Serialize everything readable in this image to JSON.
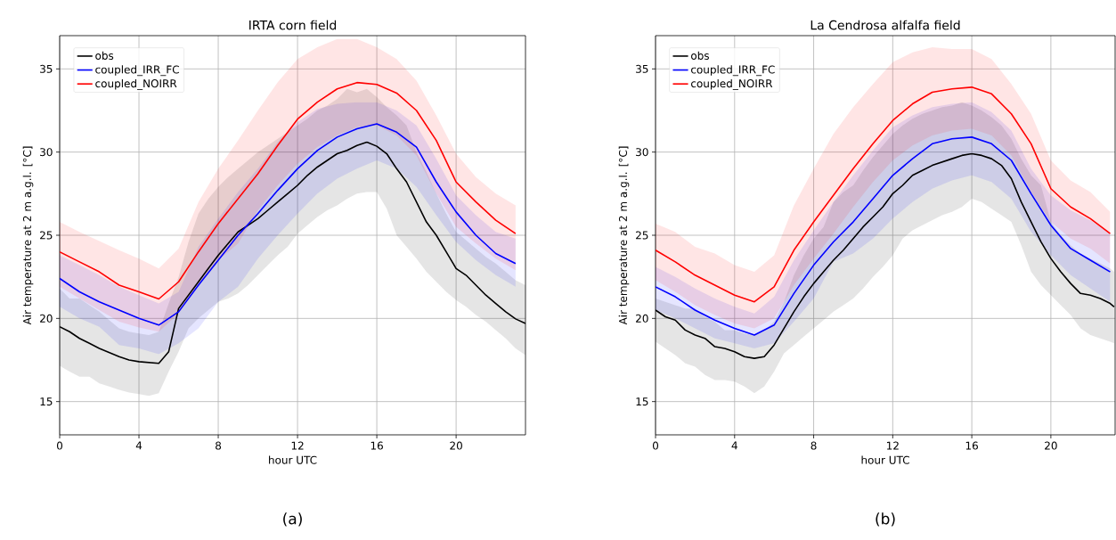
{
  "chart_data": [
    {
      "type": "line",
      "title": "IRTA corn field",
      "xlabel": "hour UTC",
      "ylabel": "Air temperature at 2 m a.g.l. [°C]",
      "annotations": [
        "(a)"
      ],
      "xlim": [
        0,
        23.5
      ],
      "ylim": [
        13,
        37
      ],
      "xticks": [
        0,
        4,
        8,
        12,
        16,
        20
      ],
      "yticks": [
        15,
        20,
        25,
        30,
        35
      ],
      "grid": true,
      "legend": "top left",
      "x": [
        0,
        1,
        2,
        3,
        4,
        5,
        6,
        7,
        8,
        9,
        10,
        11,
        12,
        13,
        14,
        15,
        16,
        17,
        18,
        19,
        20,
        21,
        22,
        23
      ],
      "series": [
        {
          "name": "obs",
          "color": "#000000",
          "x": [
            0,
            0.5,
            1,
            1.5,
            2,
            2.5,
            3,
            3.5,
            4,
            4.5,
            5,
            5.5,
            6,
            6.5,
            7,
            7.5,
            8,
            8.5,
            9,
            9.5,
            10,
            10.5,
            11,
            11.5,
            12,
            12.5,
            13,
            13.5,
            14,
            14.5,
            15,
            15.5,
            16,
            16.5,
            17,
            17.5,
            18,
            18.5,
            19,
            19.5,
            20,
            20.5,
            21,
            21.5,
            22,
            22.5,
            23,
            23.5
          ],
          "values": [
            19.5,
            19.2,
            18.8,
            18.5,
            18.2,
            17.95,
            17.7,
            17.5,
            17.4,
            17.35,
            17.3,
            18.0,
            20.6,
            21.4,
            22.2,
            23.0,
            23.8,
            24.5,
            25.2,
            25.6,
            26.0,
            26.5,
            27.0,
            27.5,
            28.0,
            28.6,
            29.1,
            29.5,
            29.9,
            30.1,
            30.4,
            30.6,
            30.35,
            29.9,
            29.0,
            28.2,
            27.0,
            25.8,
            25.0,
            24.0,
            23.0,
            22.6,
            22.0,
            21.4,
            20.9,
            20.4,
            19.97,
            19.7
          ],
          "lower": [
            17.15,
            16.8,
            16.5,
            16.5,
            16.1,
            15.9,
            15.7,
            15.55,
            15.45,
            15.35,
            15.5,
            16.8,
            18.0,
            19.4,
            20.0,
            20.5,
            21.0,
            21.2,
            21.5,
            22.0,
            22.6,
            23.2,
            23.8,
            24.3,
            25.1,
            25.6,
            26.1,
            26.5,
            26.8,
            27.2,
            27.5,
            27.6,
            27.6,
            26.6,
            25.0,
            24.3,
            23.6,
            22.8,
            22.2,
            21.6,
            21.1,
            20.7,
            20.2,
            19.8,
            19.3,
            18.8,
            18.2,
            17.8
          ],
          "upper": [
            21.8,
            21.2,
            21.2,
            20.8,
            20.4,
            19.9,
            19.4,
            19.2,
            19.1,
            19.0,
            19.2,
            20.9,
            22.5,
            24.6,
            26.3,
            27.2,
            27.9,
            28.5,
            29.0,
            29.5,
            30.0,
            30.4,
            30.8,
            31.2,
            31.6,
            32.0,
            32.5,
            32.8,
            33.2,
            33.8,
            33.6,
            33.8,
            33.3,
            32.7,
            32.2,
            31.6,
            30.0,
            28.8,
            27.5,
            26.3,
            25.2,
            24.7,
            24.2,
            23.7,
            23.3,
            22.8,
            22.3,
            22.0
          ]
        },
        {
          "name": "coupled_IRR_FC",
          "color": "#0000ff",
          "values": [
            22.4,
            21.6,
            21.0,
            20.5,
            20.0,
            19.6,
            20.4,
            22.0,
            23.5,
            25.0,
            26.3,
            27.7,
            29.0,
            30.1,
            30.9,
            31.4,
            31.7,
            31.2,
            30.3,
            28.2,
            26.4,
            25.0,
            23.9,
            23.3
          ],
          "lower": [
            20.7,
            20.0,
            19.5,
            18.4,
            18.2,
            17.85,
            18.5,
            19.4,
            21.0,
            21.9,
            23.6,
            25.0,
            26.3,
            27.5,
            28.4,
            29.0,
            29.5,
            29.0,
            27.9,
            26.2,
            24.6,
            23.5,
            22.6,
            21.9
          ],
          "upper": [
            23.8,
            23.2,
            22.6,
            21.9,
            21.4,
            20.9,
            21.6,
            24.3,
            26.0,
            27.6,
            29.0,
            30.6,
            31.8,
            32.6,
            32.9,
            33.0,
            33.0,
            32.5,
            31.6,
            29.6,
            27.4,
            26.2,
            25.2,
            24.8
          ]
        },
        {
          "name": "coupled_NOIRR",
          "color": "#ff0000",
          "values": [
            24.0,
            23.4,
            22.8,
            22.0,
            21.6,
            21.17,
            22.2,
            24.0,
            25.7,
            27.2,
            28.7,
            30.4,
            31.98,
            33.0,
            33.8,
            34.18,
            34.07,
            33.55,
            32.5,
            30.7,
            28.2,
            27.0,
            25.9,
            25.1
          ],
          "lower": [
            21.9,
            21.2,
            20.5,
            19.8,
            19.45,
            19.2,
            20.3,
            22.0,
            23.5,
            24.5,
            26.5,
            28.0,
            29.3,
            30.3,
            31.0,
            31.5,
            31.6,
            31.0,
            29.8,
            27.5,
            25.5,
            24.5,
            23.6,
            22.9
          ],
          "upper": [
            25.8,
            25.2,
            24.65,
            24.1,
            23.6,
            23.0,
            24.2,
            27.0,
            29.0,
            30.7,
            32.5,
            34.2,
            35.6,
            36.3,
            36.8,
            36.8,
            36.3,
            35.6,
            34.3,
            32.2,
            29.9,
            28.5,
            27.5,
            26.8
          ]
        }
      ]
    },
    {
      "type": "line",
      "title": "La Cendrosa alfalfa field",
      "xlabel": "hour UTC",
      "ylabel": "Air temperature at 2 m a.g.l. [°C]",
      "annotations": [
        "(b)"
      ],
      "xlim": [
        0,
        23.25
      ],
      "ylim": [
        13,
        37
      ],
      "xticks": [
        0,
        4,
        8,
        12,
        16,
        20
      ],
      "yticks": [
        15,
        20,
        25,
        30,
        35
      ],
      "grid": true,
      "legend": "top left",
      "x": [
        0,
        1,
        2,
        3,
        4,
        5,
        6,
        7,
        8,
        9,
        10,
        11,
        12,
        13,
        14,
        15,
        16,
        17,
        18,
        19,
        20,
        21,
        22,
        23
      ],
      "series": [
        {
          "name": "obs",
          "color": "#000000",
          "x": [
            0,
            0.5,
            1,
            1.5,
            2,
            2.5,
            3,
            3.5,
            4,
            4.5,
            5,
            5.5,
            6,
            6.5,
            7,
            7.5,
            8,
            8.5,
            9,
            9.5,
            10,
            10.5,
            11,
            11.5,
            12,
            12.5,
            13,
            13.5,
            14,
            14.5,
            15,
            15.5,
            16,
            16.5,
            17,
            17.5,
            18,
            18.5,
            19,
            19.5,
            20,
            20.5,
            21,
            21.5,
            22,
            22.5,
            23,
            23.2
          ],
          "values": [
            20.5,
            20.1,
            19.9,
            19.3,
            19.0,
            18.8,
            18.3,
            18.2,
            18.0,
            17.7,
            17.6,
            17.7,
            18.4,
            19.4,
            20.4,
            21.3,
            22.1,
            22.8,
            23.5,
            24.1,
            24.8,
            25.5,
            26.1,
            26.7,
            27.5,
            28.0,
            28.6,
            28.9,
            29.2,
            29.4,
            29.6,
            29.8,
            29.9,
            29.8,
            29.6,
            29.2,
            28.4,
            27.0,
            25.8,
            24.6,
            23.6,
            22.8,
            22.1,
            21.5,
            21.4,
            21.2,
            20.9,
            20.7
          ],
          "lower": [
            18.6,
            18.2,
            17.8,
            17.3,
            17.1,
            16.6,
            16.3,
            16.3,
            16.2,
            15.9,
            15.5,
            15.9,
            16.8,
            17.9,
            18.4,
            18.9,
            19.4,
            19.9,
            20.4,
            20.8,
            21.2,
            21.8,
            22.5,
            23.1,
            23.8,
            24.8,
            25.3,
            25.6,
            25.9,
            26.2,
            26.4,
            26.7,
            27.2,
            27.0,
            26.6,
            26.2,
            25.8,
            24.4,
            22.8,
            22.0,
            21.4,
            20.8,
            20.2,
            19.4,
            19.0,
            18.8,
            18.6,
            18.5
          ],
          "upper": [
            21.2,
            21.0,
            20.8,
            20.6,
            20.6,
            20.1,
            19.8,
            19.3,
            19.3,
            19.1,
            19.0,
            19.3,
            19.8,
            21.0,
            22.6,
            23.8,
            24.8,
            25.5,
            27.0,
            27.6,
            28.0,
            28.9,
            29.7,
            30.4,
            31.1,
            31.6,
            32.0,
            32.3,
            32.5,
            32.7,
            32.8,
            33.0,
            32.8,
            32.5,
            32.1,
            31.6,
            30.8,
            29.6,
            28.6,
            28.0,
            25.8,
            25.0,
            24.4,
            23.9,
            23.6,
            23.3,
            23.0,
            22.8
          ]
        },
        {
          "name": "coupled_IRR_FC",
          "color": "#0000ff",
          "values": [
            21.9,
            21.3,
            20.5,
            19.9,
            19.4,
            19.0,
            19.6,
            21.5,
            23.2,
            24.6,
            25.8,
            27.2,
            28.6,
            29.6,
            30.5,
            30.8,
            30.9,
            30.5,
            29.5,
            27.5,
            25.6,
            24.2,
            23.5,
            22.8
          ],
          "lower": [
            20.5,
            20.0,
            19.4,
            18.8,
            18.5,
            18.2,
            18.5,
            19.8,
            21.2,
            23.4,
            23.9,
            24.8,
            26.0,
            27.0,
            27.8,
            28.3,
            28.6,
            28.2,
            27.2,
            25.2,
            23.8,
            22.6,
            21.8,
            21.0
          ],
          "upper": [
            23.1,
            22.5,
            21.8,
            21.2,
            20.7,
            20.3,
            21.3,
            23.5,
            25.3,
            27.0,
            28.6,
            30.1,
            31.5,
            32.2,
            32.7,
            32.9,
            33.0,
            32.4,
            31.3,
            29.0,
            27.4,
            26.5,
            25.9,
            25.1
          ]
        },
        {
          "name": "coupled_NOIRR",
          "color": "#ff0000",
          "values": [
            24.1,
            23.4,
            22.6,
            22.0,
            21.4,
            21.0,
            21.9,
            24.1,
            25.8,
            27.4,
            29.0,
            30.5,
            31.9,
            32.9,
            33.6,
            33.8,
            33.9,
            33.5,
            32.3,
            30.5,
            27.8,
            26.7,
            26.0,
            25.1
          ],
          "lower": [
            22.3,
            21.6,
            20.8,
            20.2,
            19.7,
            19.4,
            20.0,
            22.0,
            23.6,
            25.1,
            26.7,
            28.2,
            29.5,
            30.4,
            31.0,
            31.3,
            31.4,
            31.0,
            29.8,
            27.6,
            25.8,
            24.8,
            24.2,
            23.3
          ],
          "upper": [
            25.7,
            25.2,
            24.3,
            23.9,
            23.2,
            22.8,
            23.8,
            26.8,
            29.0,
            31.1,
            32.7,
            34.1,
            35.4,
            36.0,
            36.3,
            36.2,
            36.2,
            35.6,
            34.1,
            32.3,
            29.5,
            28.3,
            27.6,
            26.4
          ]
        }
      ]
    }
  ]
}
